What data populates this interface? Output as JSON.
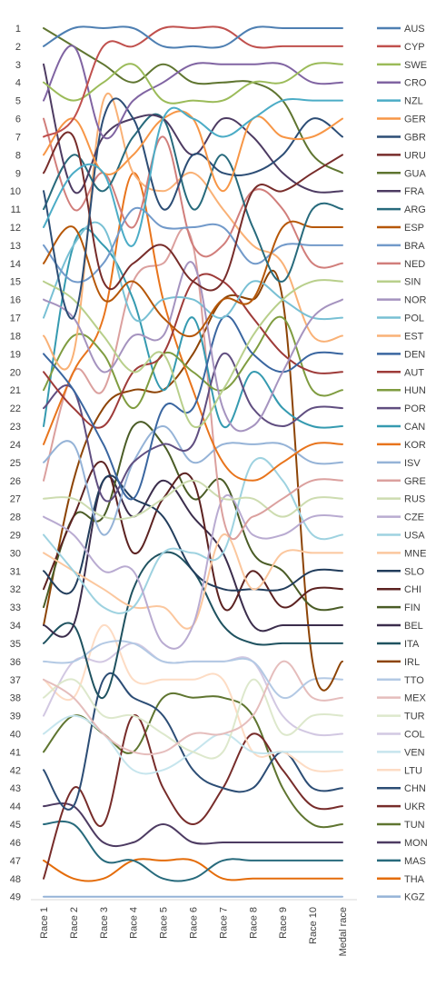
{
  "chart_data": {
    "type": "line",
    "title": "",
    "xlabel": "",
    "ylabel": "",
    "categories": [
      "Race 1",
      "Race 2",
      "Race 3",
      "Race 4",
      "Race 5",
      "Race 6",
      "Race 7",
      "Race 8",
      "Race 9",
      "Race 10",
      "Medal race"
    ],
    "y_ticks": [
      "1",
      "2",
      "3",
      "4",
      "5",
      "6",
      "7",
      "8",
      "9",
      "10",
      "11",
      "12",
      "13",
      "14",
      "15",
      "16",
      "17",
      "18",
      "19",
      "20",
      "21",
      "22",
      "23",
      "24",
      "25",
      "26",
      "27",
      "28",
      "29",
      "30",
      "31",
      "32",
      "33",
      "34",
      "35",
      "36",
      "37",
      "38",
      "39",
      "40",
      "41",
      "42",
      "43",
      "44",
      "45",
      "46",
      "47",
      "48",
      "49"
    ],
    "ylim": [
      1,
      49
    ],
    "y_inverted": true,
    "grid": false,
    "legend_position": "right",
    "series": [
      {
        "name": "AUS",
        "color": "#4e7fb2",
        "values": [
          2,
          1,
          1,
          1,
          2,
          2,
          2,
          1,
          1,
          1,
          1
        ]
      },
      {
        "name": "CYP",
        "color": "#c0504d",
        "values": [
          7,
          6,
          2,
          2,
          1,
          1,
          1,
          2,
          2,
          2,
          2
        ]
      },
      {
        "name": "SWE",
        "color": "#9bbb59",
        "values": [
          4,
          5,
          4,
          3,
          5,
          5,
          5,
          4,
          4,
          3,
          3
        ]
      },
      {
        "name": "CRO",
        "color": "#8064a2",
        "values": [
          5,
          2,
          7,
          5,
          4,
          3,
          3,
          3,
          3,
          4,
          4
        ]
      },
      {
        "name": "NZL",
        "color": "#4bacc6",
        "values": [
          12,
          9,
          9,
          13,
          6,
          6,
          7,
          6,
          5,
          5,
          5
        ]
      },
      {
        "name": "GER",
        "color": "#f79646",
        "values": [
          8,
          6,
          9,
          8,
          6,
          6,
          10,
          6,
          7,
          7,
          6
        ]
      },
      {
        "name": "GBR",
        "color": "#2c4d75",
        "values": [
          10,
          17,
          6,
          6,
          11,
          8,
          9,
          9,
          8,
          6,
          7
        ]
      },
      {
        "name": "URU",
        "color": "#772c2a",
        "values": [
          9,
          7,
          15,
          14,
          13,
          15,
          15,
          10,
          10,
          9,
          8
        ]
      },
      {
        "name": "GUA",
        "color": "#5f7530",
        "values": [
          1,
          2,
          3,
          4,
          3,
          4,
          4,
          4,
          5,
          8,
          9
        ]
      },
      {
        "name": "FRA",
        "color": "#4d3b62",
        "values": [
          3,
          10,
          7,
          6,
          6,
          8,
          6,
          7,
          9,
          10,
          10
        ]
      },
      {
        "name": "ARG",
        "color": "#276a7c",
        "values": [
          11,
          8,
          10,
          7,
          6,
          11,
          8,
          12,
          15,
          11,
          11
        ]
      },
      {
        "name": "ESP",
        "color": "#b65708",
        "values": [
          14,
          12,
          16,
          15,
          17,
          18,
          16,
          16,
          12,
          12,
          12
        ]
      },
      {
        "name": "BRA",
        "color": "#729aca",
        "values": [
          13,
          15,
          14,
          11,
          12,
          12,
          12,
          14,
          13,
          13,
          13
        ]
      },
      {
        "name": "NED",
        "color": "#d17e7b",
        "values": [
          6,
          11,
          9,
          12,
          7,
          13,
          13,
          10,
          11,
          14,
          14
        ]
      },
      {
        "name": "SIN",
        "color": "#b8cf8b",
        "values": [
          15,
          16,
          18,
          20,
          19,
          23,
          21,
          18,
          16,
          15,
          15
        ]
      },
      {
        "name": "NOR",
        "color": "#a593bf",
        "values": [
          16,
          17,
          20,
          18,
          18,
          14,
          22,
          23,
          20,
          17,
          16
        ]
      },
      {
        "name": "POL",
        "color": "#78c0d4",
        "values": [
          17,
          13,
          12,
          17,
          16,
          16,
          17,
          15,
          16,
          17,
          17
        ]
      },
      {
        "name": "EST",
        "color": "#f9b176",
        "values": [
          18,
          19,
          5,
          9,
          10,
          9,
          11,
          13,
          14,
          18,
          18
        ]
      },
      {
        "name": "DEN",
        "color": "#3a66a0",
        "values": [
          19,
          21,
          24,
          27,
          22,
          22,
          17,
          19,
          20,
          19,
          19
        ]
      },
      {
        "name": "AUT",
        "color": "#9e3b39",
        "values": [
          20,
          22,
          23,
          20,
          19,
          15,
          15,
          17,
          19,
          20,
          20
        ]
      },
      {
        "name": "HUN",
        "color": "#7f9c40",
        "values": [
          21,
          18,
          19,
          22,
          19,
          20,
          21,
          19,
          17,
          21,
          21
        ]
      },
      {
        "name": "POR",
        "color": "#604e80",
        "values": [
          22,
          21,
          27,
          25,
          24,
          24,
          19,
          22,
          23,
          22,
          22
        ]
      },
      {
        "name": "CAN",
        "color": "#359ab0",
        "values": [
          23,
          13,
          13,
          16,
          21,
          17,
          23,
          20,
          22,
          23,
          23
        ]
      },
      {
        "name": "KOR",
        "color": "#e8741c",
        "values": [
          24,
          20,
          17,
          9,
          16,
          21,
          25,
          26,
          25,
          24,
          24
        ]
      },
      {
        "name": "ISV",
        "color": "#95b3d7",
        "values": [
          25,
          24,
          29,
          25,
          23,
          25,
          24,
          24,
          24,
          25,
          25
        ]
      },
      {
        "name": "GRE",
        "color": "#dba09e",
        "values": [
          26,
          20,
          21,
          15,
          14,
          13,
          28,
          28,
          27,
          26,
          26
        ]
      },
      {
        "name": "RUS",
        "color": "#cddcb0",
        "values": [
          27,
          27,
          28,
          28,
          27,
          26,
          27,
          27,
          28,
          27,
          27
        ]
      },
      {
        "name": "CZE",
        "color": "#b9abd1",
        "values": [
          28,
          29,
          31,
          31,
          35,
          34,
          27,
          29,
          29,
          28,
          28
        ]
      },
      {
        "name": "USA",
        "color": "#9ed2e0",
        "values": [
          29,
          31,
          33,
          33,
          30,
          30,
          30,
          25,
          26,
          29,
          29
        ]
      },
      {
        "name": "MNE",
        "color": "#fbc79e",
        "values": [
          30,
          31,
          32,
          33,
          33,
          34,
          29,
          32,
          30,
          30,
          30
        ]
      },
      {
        "name": "SLO",
        "color": "#223d5c",
        "values": [
          31,
          32,
          26,
          27,
          28,
          31,
          32,
          32,
          32,
          31,
          31
        ]
      },
      {
        "name": "CHI",
        "color": "#5c2221",
        "values": [
          32,
          28,
          25,
          30,
          27,
          26,
          33,
          31,
          33,
          32,
          32
        ]
      },
      {
        "name": "FIN",
        "color": "#4a5c26",
        "values": [
          33,
          28,
          28,
          23,
          24,
          27,
          26,
          30,
          31,
          33,
          33
        ]
      },
      {
        "name": "BEL",
        "color": "#3b2d4c",
        "values": [
          34,
          34,
          26,
          28,
          26,
          28,
          30,
          34,
          34,
          34,
          34
        ]
      },
      {
        "name": "ITA",
        "color": "#1f5260",
        "values": [
          35,
          34,
          38,
          32,
          30,
          31,
          34,
          35,
          35,
          35,
          35
        ]
      },
      {
        "name": "IRL",
        "color": "#8d4406",
        "values": [
          34,
          26,
          22,
          21,
          21,
          19,
          16,
          16,
          16,
          36,
          36
        ]
      },
      {
        "name": "TTO",
        "color": "#b3c9e4",
        "values": [
          36,
          36,
          35,
          35,
          36,
          36,
          36,
          36,
          38,
          37,
          37
        ]
      },
      {
        "name": "MEX",
        "color": "#e5bdbc",
        "values": [
          37,
          38,
          40,
          41,
          41,
          40,
          40,
          39,
          36,
          38,
          38
        ]
      },
      {
        "name": "TUR",
        "color": "#dde8cc",
        "values": [
          38,
          37,
          39,
          39,
          40,
          41,
          41,
          37,
          40,
          39,
          39
        ]
      },
      {
        "name": "COL",
        "color": "#d2c8e2",
        "values": [
          39,
          36,
          36,
          35,
          36,
          36,
          36,
          36,
          39,
          40,
          40
        ]
      },
      {
        "name": "VEN",
        "color": "#c6e5ed",
        "values": [
          40,
          39,
          40,
          42,
          42,
          41,
          40,
          41,
          41,
          41,
          41
        ]
      },
      {
        "name": "LTU",
        "color": "#fddcc4",
        "values": [
          37,
          38,
          34,
          37,
          37,
          37,
          37,
          41,
          41,
          42,
          42
        ]
      },
      {
        "name": "CHN",
        "color": "#2c4d75",
        "values": [
          42,
          44,
          37,
          38,
          39,
          42,
          43,
          43,
          41,
          43,
          43
        ]
      },
      {
        "name": "UKR",
        "color": "#772c2a",
        "values": [
          48,
          43,
          45,
          39,
          43,
          45,
          43,
          40,
          42,
          44,
          44
        ]
      },
      {
        "name": "TUN",
        "color": "#5f7530",
        "values": [
          41,
          39,
          40,
          41,
          38,
          38,
          38,
          39,
          43,
          45,
          45
        ]
      },
      {
        "name": "MON",
        "color": "#4d3b62",
        "values": [
          44,
          44,
          46,
          46,
          45,
          46,
          46,
          46,
          46,
          46,
          46
        ]
      },
      {
        "name": "MAS",
        "color": "#276a7c",
        "values": [
          45,
          45,
          47,
          47,
          48,
          48,
          47,
          47,
          47,
          47,
          47
        ]
      },
      {
        "name": "THA",
        "color": "#e46c0a",
        "values": [
          47,
          48,
          48,
          47,
          47,
          47,
          48,
          48,
          48,
          48,
          48
        ]
      },
      {
        "name": "KGZ",
        "color": "#95b3d7",
        "values": [
          49,
          49,
          49,
          49,
          49,
          49,
          49,
          49,
          49,
          49,
          49
        ]
      }
    ]
  }
}
